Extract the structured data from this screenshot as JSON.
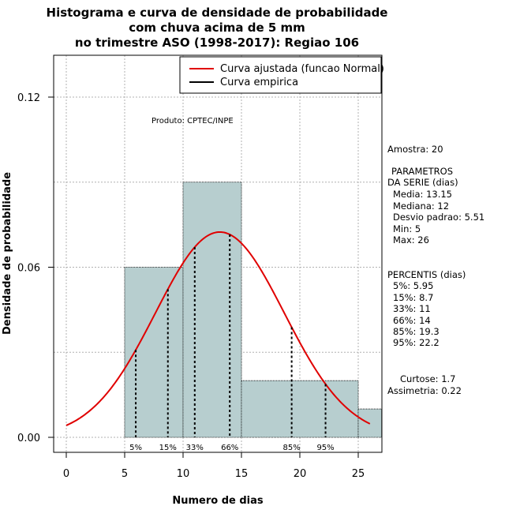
{
  "chart_data": {
    "type": "bar",
    "title_lines": [
      "Histograma e curva de densidade de probabilidade",
      "com chuva acima de 5 mm",
      "no trimestre ASO (1998-2017): Regiao 106"
    ],
    "xlabel": "Numero de dias",
    "ylabel": "Densidade de probabilidade",
    "xlim": [
      -1,
      27
    ],
    "ylim": [
      0,
      0.135
    ],
    "x_ticks": [
      0,
      5,
      10,
      15,
      20,
      25
    ],
    "x_tick_labels": [
      "0",
      "5",
      "10",
      "15",
      "20",
      "25"
    ],
    "y_ticks": [
      0.0,
      0.06,
      0.12
    ],
    "y_tick_labels": [
      "0.00",
      "0.06",
      "0.12"
    ],
    "grid": true,
    "histogram": {
      "bins": [
        {
          "start": 5,
          "end": 10,
          "density": 0.06
        },
        {
          "start": 10,
          "end": 15,
          "density": 0.09
        },
        {
          "start": 15,
          "end": 25,
          "density": 0.02
        },
        {
          "start": 25,
          "end": 27,
          "density": 0.01
        }
      ],
      "color": "#b7cecf"
    },
    "normal_curve": {
      "mean": 13.15,
      "sd": 5.51,
      "x_from": 0,
      "x_to": 26,
      "color": "#e00000"
    },
    "percentile_markers": [
      {
        "label": "5%",
        "x": 5.95
      },
      {
        "label": "15%",
        "x": 8.7
      },
      {
        "label": "33%",
        "x": 11
      },
      {
        "label": "66%",
        "x": 14
      },
      {
        "label": "85%",
        "x": 19.3
      },
      {
        "label": "95%",
        "x": 22.2
      }
    ],
    "legend": [
      {
        "label": "Curva ajustada (funcao Normal)",
        "color": "#e00000"
      },
      {
        "label": "Curva empirica",
        "color": "#000000"
      }
    ],
    "legend_position": "top-right"
  },
  "annotations": {
    "produto": "Produto: CPTEC/INPE",
    "amostra": "Amostra: 20",
    "parametros_lines": [
      "PARAMETROS",
      "DA SERIE (dias)",
      "Media: 13.15",
      "Mediana: 12",
      "Desvio padrao: 5.51",
      "Min: 5",
      "Max: 26"
    ],
    "percentis_lines": [
      "PERCENTIS (dias)",
      "5%: 5.95",
      "15%: 8.7",
      "33%: 11",
      "66%: 14",
      "85%: 19.3",
      "95%: 22.2"
    ],
    "curtose": "Curtose: 1.7",
    "assimetria": "Assimetria: 0.22"
  }
}
